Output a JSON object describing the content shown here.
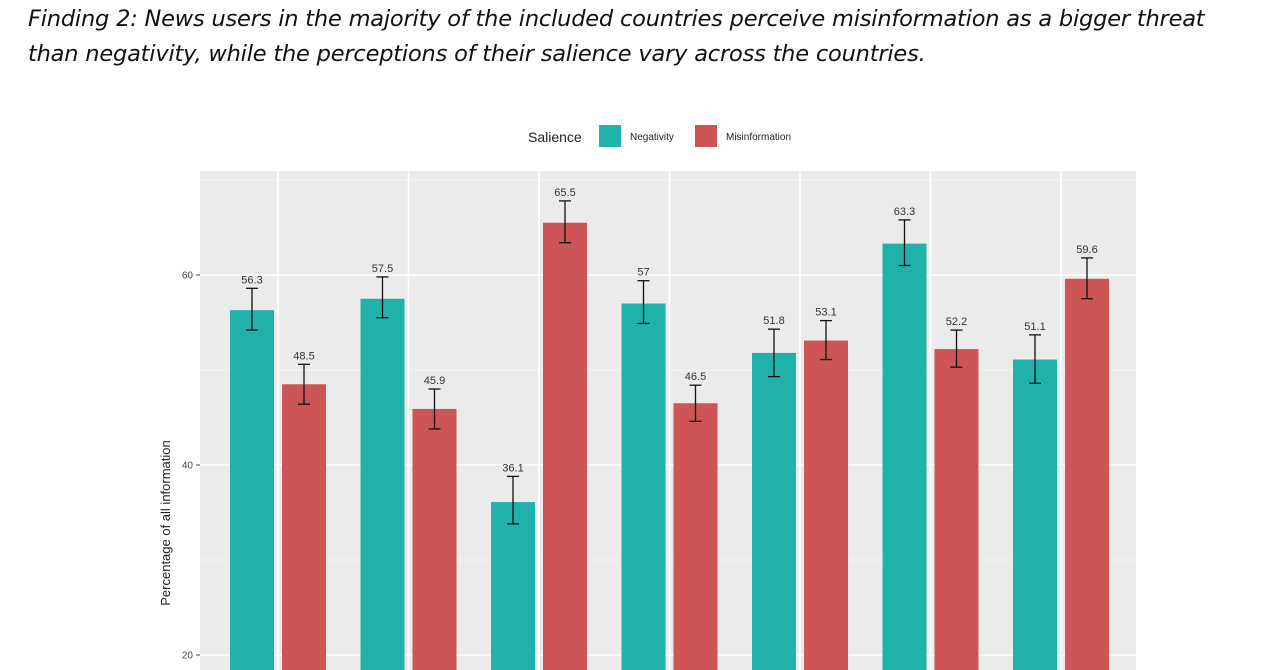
{
  "heading": {
    "line1": "Finding 2: News users in the majority of the included countries perceive misinformation as a bigger threat",
    "line2": "than negativity, while the perceptions of their salience vary across the countries."
  },
  "chart_data": {
    "type": "bar",
    "title": "",
    "legend": {
      "title": "Salience",
      "placement": "top",
      "items": [
        {
          "name": "Negativity",
          "color": "#20B2AA"
        },
        {
          "name": "Misinformation",
          "color": "#CD5555"
        }
      ]
    },
    "ylabel": "Percentage of all information",
    "xlabel": "",
    "ylim": [
      20,
      72
    ],
    "yticks": [
      20,
      40,
      60
    ],
    "grid": true,
    "background": "#EBEBEB",
    "groups": [
      {
        "negativity": 56.3,
        "neg_err": [
          54.2,
          58.6
        ],
        "misinformation": 48.5,
        "mis_err": [
          46.4,
          50.6
        ]
      },
      {
        "negativity": 57.5,
        "neg_err": [
          55.5,
          59.8
        ],
        "misinformation": 45.9,
        "mis_err": [
          43.8,
          48.0
        ]
      },
      {
        "negativity": 36.1,
        "neg_err": [
          33.8,
          38.8
        ],
        "misinformation": 65.5,
        "mis_err": [
          63.4,
          67.8
        ]
      },
      {
        "negativity": 57.0,
        "neg_err": [
          54.9,
          59.4
        ],
        "misinformation": 46.5,
        "mis_err": [
          44.6,
          48.4
        ]
      },
      {
        "negativity": 51.8,
        "neg_err": [
          49.3,
          54.3
        ],
        "misinformation": 53.1,
        "mis_err": [
          51.1,
          55.2
        ]
      },
      {
        "negativity": 63.3,
        "neg_err": [
          61.0,
          65.8
        ],
        "misinformation": 52.2,
        "mis_err": [
          50.3,
          54.2
        ]
      },
      {
        "negativity": 51.1,
        "neg_err": [
          48.6,
          53.7
        ],
        "misinformation": 59.6,
        "mis_err": [
          57.5,
          61.8
        ]
      }
    ],
    "labels": {
      "negativity": [
        "56.3",
        "57.5",
        "36.1",
        "57",
        "51.8",
        "63.3",
        "51.1"
      ],
      "misinformation": [
        "48.5",
        "45.9",
        "65.5",
        "46.5",
        "53.1",
        "52.2",
        "59.6"
      ]
    }
  }
}
